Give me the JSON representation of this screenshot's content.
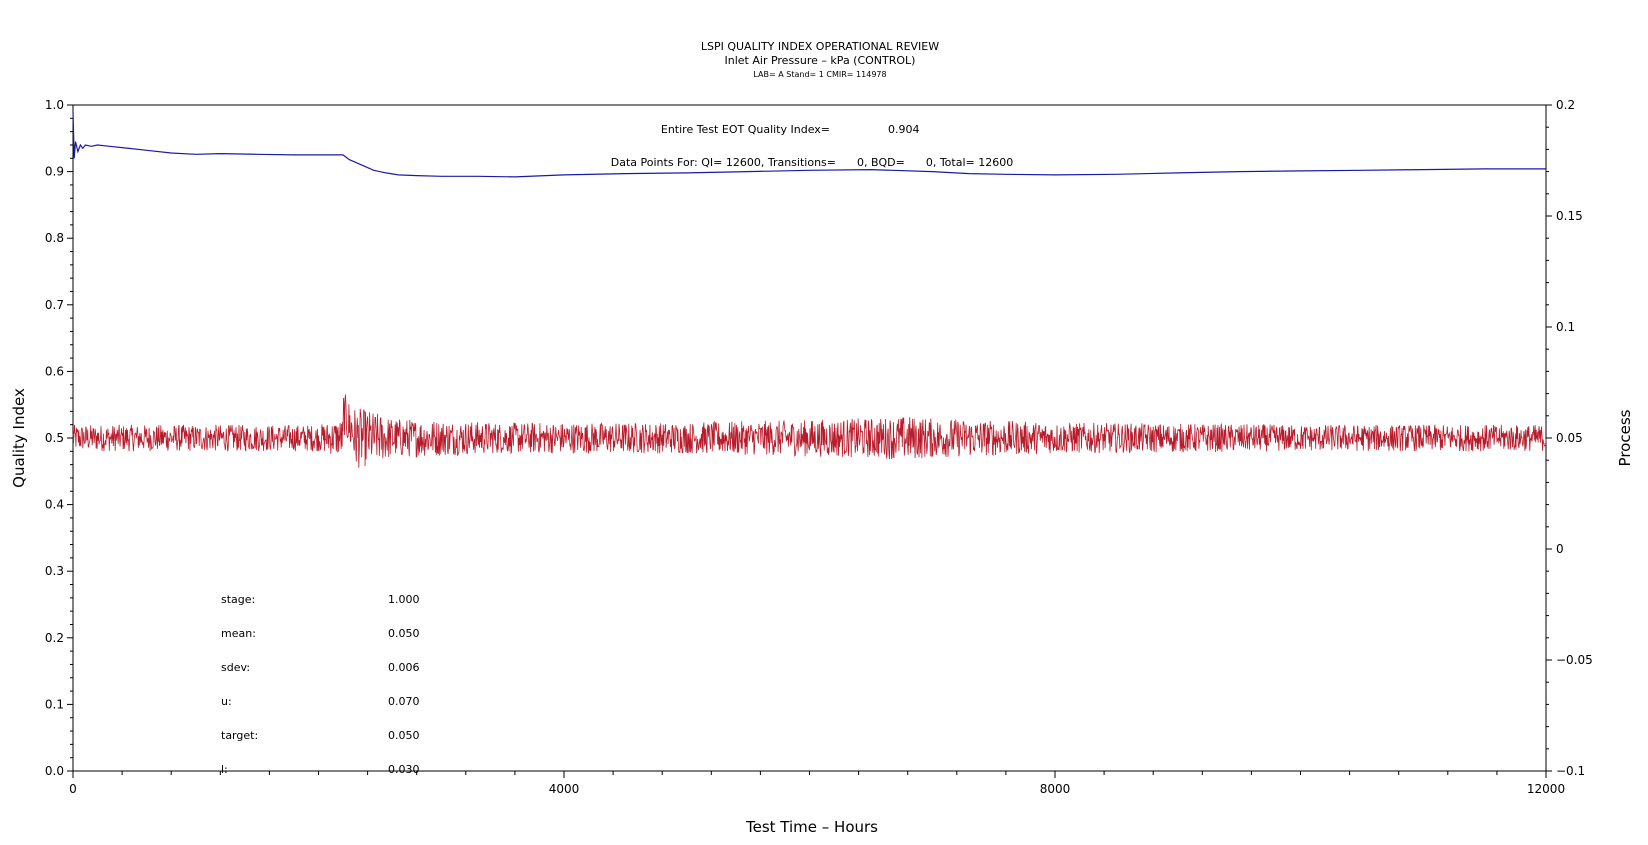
{
  "chart_data": {
    "type": "line",
    "title": "LSPI QUALITY INDEX OPERATIONAL REVIEW",
    "subtitle": "Inlet Air Pressure – kPa (CONTROL)",
    "subtitle2": "LAB= A Stand= 1 CMIR= 114978",
    "xlabel": "Test Time – Hours",
    "ylabel": "Quality Index",
    "y2label": "Process",
    "xlim": [
      0,
      12000
    ],
    "ylim": [
      0.0,
      1.0
    ],
    "y2lim": [
      -0.1,
      0.2
    ],
    "x_ticks": [
      0,
      4000,
      8000,
      12000
    ],
    "x_tick_labels": [
      "0",
      "4000",
      "8000",
      "12000"
    ],
    "y_ticks": [
      0.0,
      0.1,
      0.2,
      0.3,
      0.4,
      0.5,
      0.6,
      0.7,
      0.8,
      0.9,
      1.0
    ],
    "y_tick_labels": [
      "0.0",
      "0.1",
      "0.2",
      "0.3",
      "0.4",
      "0.5",
      "0.6",
      "0.7",
      "0.8",
      "0.9",
      "1.0"
    ],
    "y2_ticks": [
      -0.1,
      -0.05,
      0,
      0.05,
      0.1,
      0.15,
      0.2
    ],
    "y2_tick_labels": [
      "−0.1",
      "−0.05",
      "0",
      "0.05",
      "0.1",
      "0.15",
      "0.2"
    ],
    "grid": false,
    "annotations": {
      "eot_label": "Entire Test EOT Quality Index=",
      "eot_value": "0.904",
      "points_label": "Data Points For: QI= 12600, Transitions=      0, BQD=      0, Total= 12600"
    },
    "stats": [
      {
        "label": "stage:",
        "value": "1.000"
      },
      {
        "label": "mean:",
        "value": "0.050"
      },
      {
        "label": "sdev:",
        "value": "0.006"
      },
      {
        "label": "u:",
        "value": "0.070"
      },
      {
        "label": "target:",
        "value": "0.050"
      },
      {
        "label": "l:",
        "value": "0.030"
      }
    ],
    "series": [
      {
        "axis": "left",
        "color": "#1a1aa6",
        "x": [
          0,
          10,
          20,
          40,
          60,
          80,
          100,
          150,
          200,
          300,
          400,
          600,
          800,
          1000,
          1200,
          1500,
          1800,
          2000,
          2200,
          2250,
          2350,
          2450,
          2550,
          2650,
          2800,
          3000,
          3300,
          3600,
          4000,
          4500,
          5000,
          5500,
          6000,
          6500,
          7000,
          7300,
          7600,
          8000,
          8500,
          9000,
          9500,
          10000,
          10500,
          11000,
          11500,
          12000
        ],
        "values": [
          0.99,
          0.92,
          0.945,
          0.93,
          0.94,
          0.935,
          0.94,
          0.938,
          0.94,
          0.938,
          0.936,
          0.932,
          0.928,
          0.926,
          0.927,
          0.926,
          0.925,
          0.925,
          0.925,
          0.918,
          0.91,
          0.902,
          0.898,
          0.895,
          0.894,
          0.893,
          0.893,
          0.892,
          0.895,
          0.897,
          0.898,
          0.9,
          0.902,
          0.903,
          0.9,
          0.897,
          0.896,
          0.895,
          0.896,
          0.898,
          0.9,
          0.901,
          0.902,
          0.903,
          0.904,
          0.904
        ]
      },
      {
        "axis": "right",
        "color": "#b81c2c",
        "mean": 0.05,
        "points": 12600,
        "x": [
          0,
          1000,
          2000,
          2200,
          2300,
          2450,
          2600,
          3500,
          5000,
          6500,
          6800,
          7000,
          8000,
          10000,
          12000
        ],
        "amplitude": [
          0.006,
          0.006,
          0.006,
          0.009,
          0.014,
          0.012,
          0.009,
          0.007,
          0.007,
          0.009,
          0.01,
          0.009,
          0.007,
          0.006,
          0.006
        ]
      }
    ]
  }
}
